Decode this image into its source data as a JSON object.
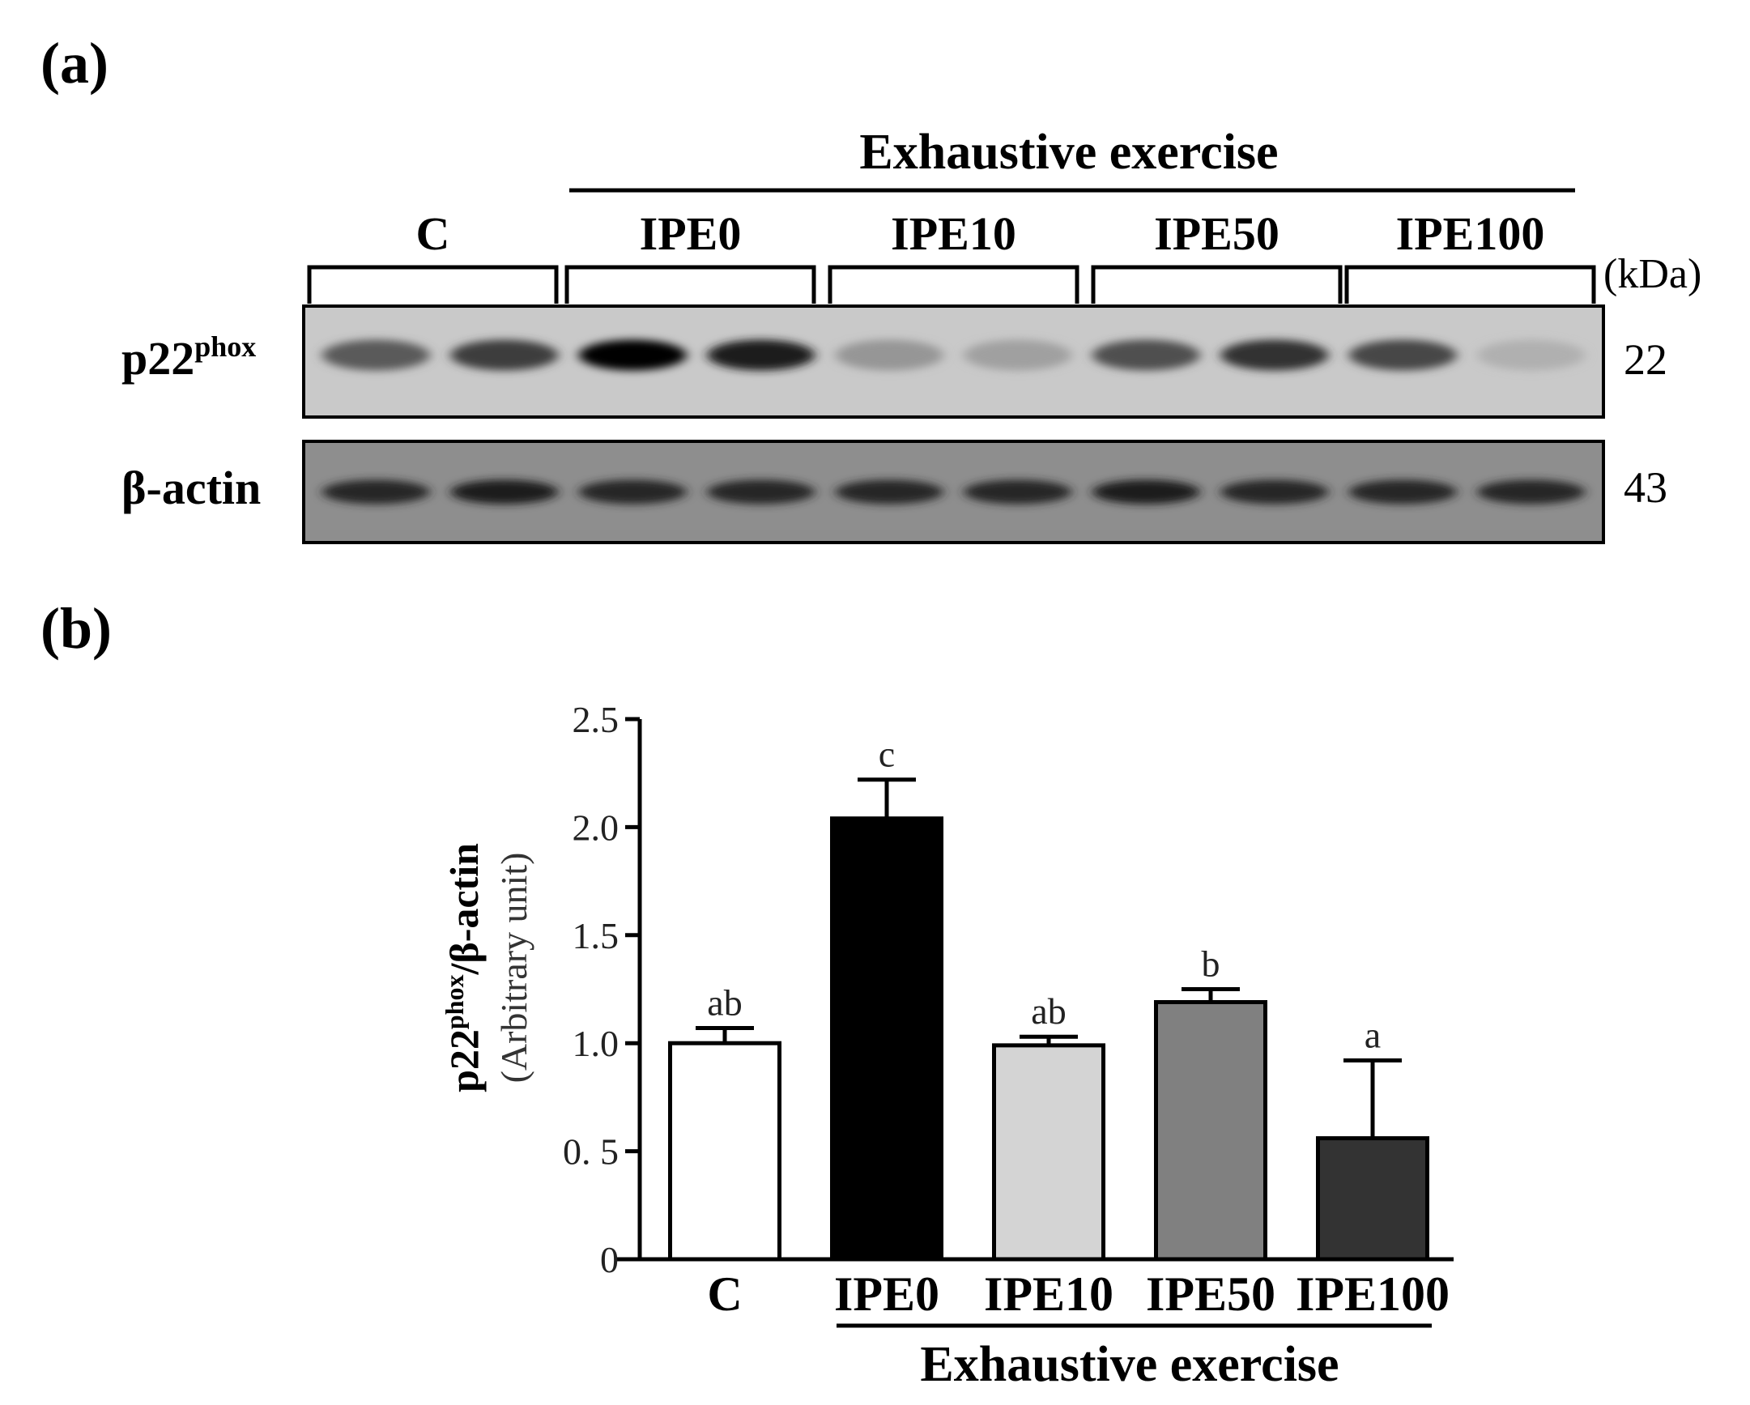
{
  "panel_a": {
    "label": "(a)",
    "header": "Exhaustive exercise",
    "groups": [
      "C",
      "IPE0",
      "IPE10",
      "IPE50",
      "IPE100"
    ],
    "kda_label": "(kDa)",
    "blots": [
      {
        "protein_main": "p22",
        "protein_sup": "phox",
        "kda": "22",
        "band_darkness": [
          0.55,
          0.7,
          1.0,
          0.85,
          0.25,
          0.2,
          0.6,
          0.75,
          0.65,
          0.12
        ]
      },
      {
        "protein_main": "β-actin",
        "protein_sup": "",
        "kda": "43",
        "band_darkness": [
          0.8,
          0.85,
          0.8,
          0.8,
          0.8,
          0.8,
          0.85,
          0.8,
          0.8,
          0.8
        ]
      }
    ]
  },
  "panel_b": {
    "label": "(b)",
    "ylabel_main": "p22",
    "ylabel_sup": "phox",
    "ylabel_tail": "/β-actin",
    "ylabel_sub": "(Arbitrary unit)",
    "group_caption": "Exhaustive exercise"
  },
  "chart_data": {
    "type": "bar",
    "categories": [
      "C",
      "IPE0",
      "IPE10",
      "IPE50",
      "IPE100"
    ],
    "values": [
      1.0,
      2.04,
      0.99,
      1.19,
      0.56
    ],
    "errors": [
      0.07,
      0.18,
      0.04,
      0.06,
      0.36
    ],
    "letters": [
      "ab",
      "c",
      "ab",
      "b",
      "a"
    ],
    "bar_colors": [
      "#ffffff",
      "#000000",
      "#d4d4d4",
      "#808080",
      "#333333"
    ],
    "ylim": [
      0,
      2.5
    ],
    "yticks": [
      0,
      0.5,
      1.0,
      1.5,
      2.0,
      2.5
    ],
    "ytick_labels": [
      "0",
      "0. 5",
      "1.0",
      "1.5",
      "2.0",
      "2.5"
    ],
    "xlabel": "",
    "ylabel": "p22phox/β-actin (Arbitrary unit)",
    "grid": false,
    "legend": false
  }
}
